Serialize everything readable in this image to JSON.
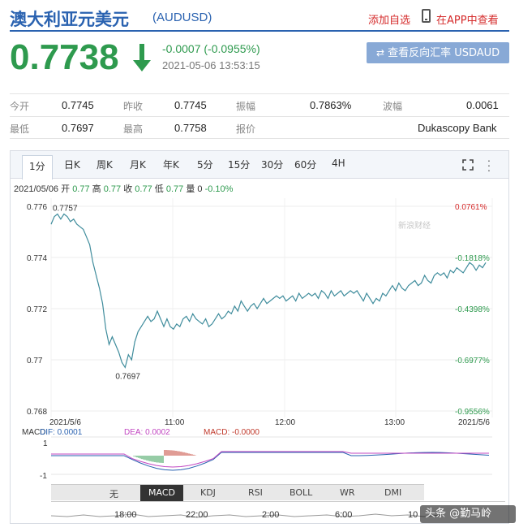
{
  "header": {
    "title": "澳大利亚元美元",
    "code": "(AUDUSD)",
    "add_watch": "添加自选",
    "app_link": "在APP中查看"
  },
  "quote": {
    "price": "0.7738",
    "change": "-0.0007 (-0.0955%)",
    "time": "2021-05-06 13:53:15",
    "reverse_button": "查看反向汇率 USDAUD",
    "up_color": "#d52b2b",
    "down_color": "#2e9a4e"
  },
  "stats": {
    "open_label": "今开",
    "open": "0.7745",
    "prev_label": "昨收",
    "prev": "0.7745",
    "amp_label": "振幅",
    "amp": "0.7863%",
    "wave_label": "波幅",
    "wave": "0.0061",
    "low_label": "最低",
    "low": "0.7697",
    "high_label": "最高",
    "high": "0.7758",
    "quote_label": "报价",
    "quote_src": "Dukascopy Bank"
  },
  "chart_tabs": [
    "1分",
    "日K",
    "周K",
    "月K",
    "年K",
    "5分",
    "15分",
    "30分",
    "60分",
    "4H"
  ],
  "info": {
    "date": "2021/05/06",
    "open_label": "开",
    "open": "0.77",
    "high_label": "高",
    "high": "0.77",
    "close_label": "收",
    "close": "0.77",
    "low_label": "低",
    "low": "0.77",
    "vol_label": "量",
    "vol": "0",
    "pct": "-0.10%"
  },
  "chart_data": {
    "type": "line",
    "ylim": [
      0.768,
      0.776
    ],
    "yticks": [
      "0.776",
      "0.774",
      "0.772",
      "0.77",
      "0.768"
    ],
    "pct_ticks": [
      "0.0761%",
      "-0.1818%",
      "-0.4398%",
      "-0.6977%",
      "-0.9556%"
    ],
    "xlabels": [
      "2021/5/6",
      "11:00",
      "12:00",
      "13:00",
      "2021/5/6"
    ],
    "annotations": {
      "high": "0.7757",
      "low": "0.7697"
    },
    "watermark": "新浪财经",
    "series": [
      {
        "values": [
          0.7753,
          0.7756,
          0.7757,
          0.7755,
          0.7757,
          0.7756,
          0.7754,
          0.7755,
          0.7753,
          0.7752,
          0.7751,
          0.7748,
          0.7745,
          0.7738,
          0.7733,
          0.7728,
          0.7722,
          0.7712,
          0.7706,
          0.7709,
          0.7706,
          0.7703,
          0.7699,
          0.7697,
          0.7702,
          0.77,
          0.7707,
          0.7711,
          0.7713,
          0.7715,
          0.7717,
          0.7715,
          0.7716,
          0.7719,
          0.7716,
          0.7713,
          0.7716,
          0.7713,
          0.7712,
          0.7714,
          0.7713,
          0.7716,
          0.7717,
          0.7715,
          0.7718,
          0.7716,
          0.7715,
          0.7714,
          0.7716,
          0.7713,
          0.7714,
          0.7716,
          0.7718,
          0.7716,
          0.7717,
          0.7719,
          0.7718,
          0.7721,
          0.7719,
          0.7723,
          0.7721,
          0.7719,
          0.7721,
          0.7722,
          0.772,
          0.7722,
          0.7724,
          0.7722,
          0.7723,
          0.7724,
          0.7725,
          0.7724,
          0.7725,
          0.7723,
          0.7724,
          0.7725,
          0.7723,
          0.7726,
          0.7724,
          0.7725,
          0.7726,
          0.7725,
          0.7726,
          0.7724,
          0.7727,
          0.7726,
          0.7724,
          0.7727,
          0.7725,
          0.7726,
          0.7727,
          0.7725,
          0.7726,
          0.7727,
          0.7726,
          0.7727,
          0.7725,
          0.7723,
          0.7726,
          0.7724,
          0.7722,
          0.7724,
          0.7723,
          0.7726,
          0.7725,
          0.7727,
          0.7729,
          0.7727,
          0.773,
          0.7728,
          0.7727,
          0.7729,
          0.773,
          0.7731,
          0.7729,
          0.773,
          0.7733,
          0.7731,
          0.773,
          0.7733,
          0.7734,
          0.7733,
          0.7734,
          0.7732,
          0.7735,
          0.7734,
          0.7736,
          0.7735,
          0.7734,
          0.7736,
          0.7738,
          0.7737,
          0.7735,
          0.7737,
          0.7736,
          0.7738
        ]
      }
    ]
  },
  "macd": {
    "label": "MACD",
    "dif": "DIF: 0.0001",
    "dea": "DEA: 0.0002",
    "macd": "MACD: -0.0000",
    "ytop": "1",
    "ybottom": "-1",
    "dif_color": "#2a62b0",
    "dea_color": "#c247c2",
    "macd_color": "#c0392b"
  },
  "indicators": [
    "无",
    "MACD",
    "KDJ",
    "RSI",
    "BOLL",
    "WR",
    "DMI"
  ],
  "mini_times": [
    "18:00",
    "22:00",
    "2:00",
    "6:00",
    "10"
  ],
  "watermark": "头条 @勤马岭"
}
